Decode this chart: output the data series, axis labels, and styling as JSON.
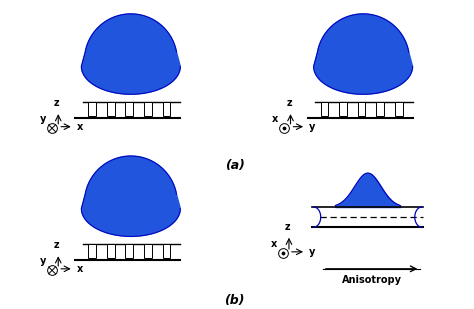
{
  "fig_width": 4.74,
  "fig_height": 3.09,
  "dpi": 100,
  "bg_color": "#ffffff",
  "blue_fill": "#2255dd",
  "blue_stroke": "#0000bb",
  "label_a": "(a)",
  "label_b": "(b)",
  "anisotropy_label": "Anisotropy"
}
